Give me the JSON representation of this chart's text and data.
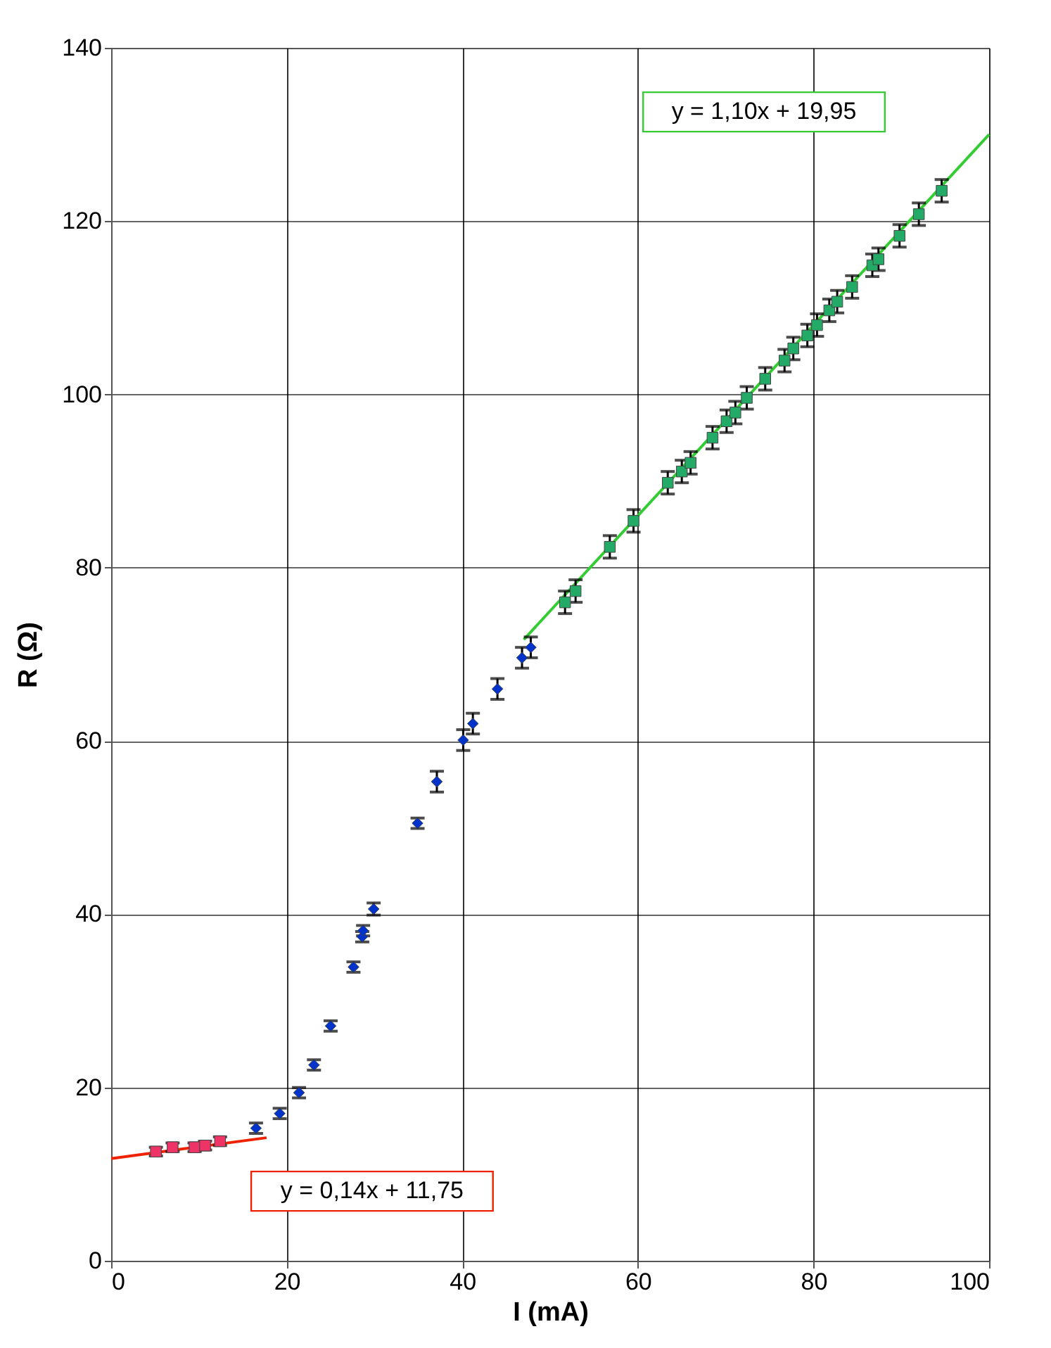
{
  "chart_data": {
    "type": "scatter",
    "xlabel": "I  (mA)",
    "ylabel": "R  (Ω)",
    "xlim": [
      0,
      100
    ],
    "xticks": [
      0,
      20,
      40,
      60,
      80,
      100
    ],
    "ylim": [
      0,
      140
    ],
    "yticks": [
      0,
      20,
      40,
      60,
      80,
      100,
      120,
      140
    ],
    "grid": true,
    "series": [
      {
        "marker": "square",
        "color": "#ee3366",
        "x": [
          5.1,
          7.0,
          9.5,
          10.7,
          12.4
        ],
        "values": [
          12.6,
          13.1,
          13.1,
          13.3,
          13.8
        ],
        "errors": [
          0.5,
          0.5,
          0.5,
          0.5,
          0.5
        ]
      },
      {
        "marker": "diamond",
        "color": "#0033cc",
        "x": [
          16.5,
          19.2,
          21.4,
          23.1,
          25.0,
          27.6,
          28.6,
          28.7,
          29.9,
          34.9,
          37.1,
          40.1,
          41.2,
          44.0,
          46.8,
          47.8
        ],
        "values": [
          15.3,
          17.0,
          19.4,
          22.6,
          27.1,
          33.9,
          37.4,
          38.1,
          40.6,
          50.5,
          55.3,
          60.1,
          62.0,
          66.0,
          69.6,
          70.8
        ],
        "errors": [
          0.6,
          0.6,
          0.6,
          0.6,
          0.6,
          0.6,
          0.6,
          0.6,
          0.7,
          0.6,
          1.2,
          1.2,
          1.2,
          1.2,
          1.2,
          1.2
        ]
      },
      {
        "marker": "square",
        "color": "#22aa66",
        "x": [
          51.7,
          52.9,
          56.8,
          59.5,
          63.4,
          65.0,
          66.0,
          68.5,
          70.1,
          71.1,
          72.4,
          74.5,
          76.7,
          77.7,
          79.3,
          80.4,
          81.8,
          82.7,
          84.4,
          86.7,
          87.4,
          89.8,
          92.0,
          94.6
        ],
        "values": [
          76.0,
          77.3,
          82.4,
          85.4,
          89.8,
          91.1,
          92.1,
          95.0,
          96.9,
          97.9,
          99.6,
          101.8,
          103.9,
          105.3,
          106.8,
          108.0,
          109.7,
          110.7,
          112.4,
          114.9,
          115.6,
          118.3,
          120.8,
          123.5
        ],
        "errors": [
          1.3,
          1.3,
          1.3,
          1.3,
          1.3,
          1.3,
          1.3,
          1.3,
          1.3,
          1.3,
          1.3,
          1.3,
          1.3,
          1.3,
          1.3,
          1.3,
          1.3,
          1.3,
          1.3,
          1.3,
          1.3,
          1.3,
          1.3,
          1.3
        ]
      },
      {
        "type": "line",
        "marker": "none",
        "line_style": "solid",
        "color": "#ee2200",
        "x": [
          0,
          17.7
        ],
        "values": [
          11.8,
          14.2
        ]
      },
      {
        "type": "line",
        "marker": "none",
        "line_style": "solid",
        "color": "#33cc33",
        "x": [
          47,
          100
        ],
        "values": [
          71.7,
          130.0
        ]
      }
    ],
    "annotations": [
      "y = 0,14x + 11,75",
      "y = 1,10x + 19,95"
    ]
  }
}
